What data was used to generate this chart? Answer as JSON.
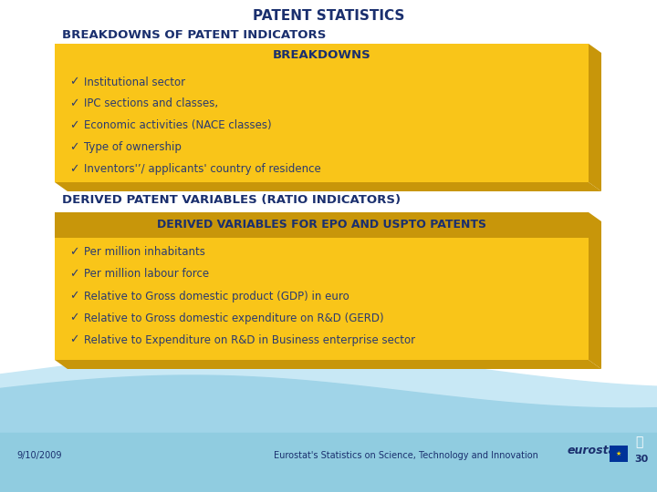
{
  "title": "PATENT STATISTICS",
  "subtitle1": "BREAKDOWNS OF PATENT INDICATORS",
  "box1_header": "BREAKDOWNS",
  "box1_items": [
    "Institutional sector",
    "IPC sections and classes,",
    "Economic activities (NACE classes)",
    "Type of ownership",
    "Inventors'’/ applicants' country of residence"
  ],
  "subtitle2": "DERIVED PATENT VARIABLES (RATIO INDICATORS)",
  "box2_header": "DERIVED VARIABLES FOR EPO AND USPTO PATENTS",
  "box2_items": [
    "Per million inhabitants",
    "Per million labour force",
    "Relative to Gross domestic product (GDP) in euro",
    "Relative to Gross domestic expenditure on R&D (GERD)",
    "Relative to Expenditure on R&D in Business enterprise sector"
  ],
  "footer_date": "9/10/2009",
  "footer_text": "Eurostat's Statistics on Science, Technology and Innovation",
  "page_num": "30",
  "bg_color": "#ffffff",
  "box_color": "#F9C519",
  "box_header1_color": "#F9C519",
  "box_header2_bg": "#C8960A",
  "box_shadow_color": "#C8960A",
  "title_color": "#1a2f6e",
  "subtitle_color": "#1a2f6e",
  "item_color": "#2a3a70",
  "header_text_color": "#1a2f6e",
  "wave_light": "#b8dff0",
  "wave_mid": "#90cce0",
  "footer_color": "#1a2f6e"
}
